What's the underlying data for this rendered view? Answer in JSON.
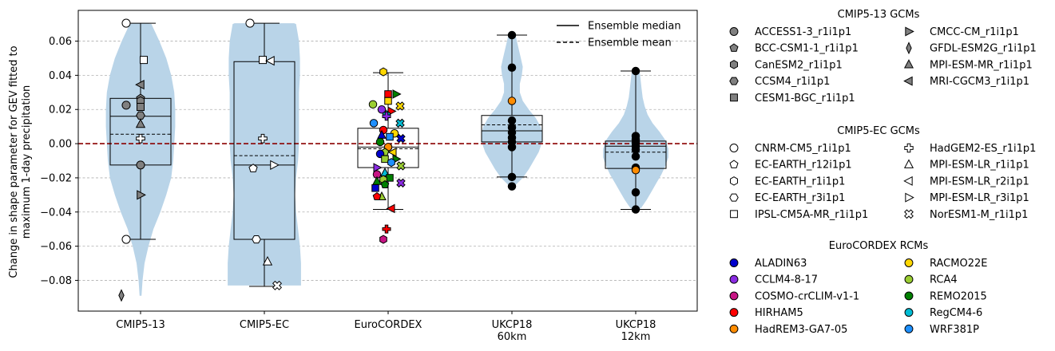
{
  "chart_data": {
    "type": "violin-box",
    "ylabel_lines": [
      "Change in shape parameter for GEV fitted to",
      "maximum 1-day precipitation"
    ],
    "ylim": [
      -0.098,
      0.078
    ],
    "yticks": [
      {
        "value": 0.06,
        "label": "0.06"
      },
      {
        "value": 0.04,
        "label": "0.04"
      },
      {
        "value": 0.02,
        "label": "0.02"
      },
      {
        "value": 0.0,
        "label": "0.00"
      },
      {
        "value": -0.02,
        "label": "−0.02"
      },
      {
        "value": -0.04,
        "label": "−0.04"
      },
      {
        "value": -0.06,
        "label": "−0.06"
      },
      {
        "value": -0.08,
        "label": "−0.08"
      }
    ],
    "grid": "horizontal dashed",
    "zero_line_color": "#8b0000",
    "violin_color": "#b9d4e8",
    "categories": [
      {
        "lines": [
          "CMIP5-13"
        ],
        "box": {
          "q1": -0.0125,
          "q3": 0.0265,
          "median": 0.016,
          "mean": 0.0055,
          "wlo": -0.056,
          "whi": 0.0705
        },
        "violin": [
          [
            -0.089,
            0.001
          ],
          [
            -0.08,
            0.002
          ],
          [
            -0.07,
            0.004
          ],
          [
            -0.06,
            0.008
          ],
          [
            -0.05,
            0.013
          ],
          [
            -0.04,
            0.02
          ],
          [
            -0.03,
            0.026
          ],
          [
            -0.02,
            0.031
          ],
          [
            -0.01,
            0.033
          ],
          [
            0.0,
            0.034
          ],
          [
            0.01,
            0.035
          ],
          [
            0.02,
            0.035
          ],
          [
            0.03,
            0.034
          ],
          [
            0.04,
            0.031
          ],
          [
            0.05,
            0.026
          ],
          [
            0.06,
            0.019
          ],
          [
            0.07,
            0.011
          ],
          [
            0.0705,
            0.006
          ]
        ],
        "points": [
          {
            "model": "ACCESS1-3_r1i1p1",
            "y": 0.0225
          },
          {
            "model": "BCC-CSM1-1_r1i1p1",
            "y": 0.0265
          },
          {
            "model": "CanESM2_r1i1p1",
            "y": 0.025
          },
          {
            "model": "CCSM4_r1i1p1",
            "y": 0.0165
          },
          {
            "model": "CESM1-BGC_r1i1p1",
            "y": 0.0215
          },
          {
            "model": "CMCC-CM_r1i1p1",
            "y": -0.03
          },
          {
            "model": "GFDL-ESM2G_r1i1p1",
            "y": -0.0888
          },
          {
            "model": "MPI-ESM-MR_r1i1p1",
            "y": 0.0115
          },
          {
            "model": "MRI-CGCM3_r1i1p1",
            "y": 0.0345
          },
          {
            "model": "CNRM-CM5_r1i1p1",
            "y": 0.0705
          },
          {
            "model": "HadGEM2-ES_r1i1p1",
            "y": 0.003
          },
          {
            "model": "IPSL-CM5A-MR_r1i1p1",
            "y": 0.049
          },
          {
            "model": "ACCESS1-3_r1i1p1",
            "y": -0.0125
          },
          {
            "model": "CNRM-CM5_r1i1p1",
            "y": -0.056
          }
        ]
      },
      {
        "lines": [
          "CMIP5-EC"
        ],
        "box": {
          "q1": -0.056,
          "q3": 0.048,
          "median": -0.0125,
          "mean": -0.007,
          "wlo": -0.0835,
          "whi": 0.0705
        },
        "violin": [
          [
            -0.083,
            0.037
          ],
          [
            -0.07,
            0.037
          ],
          [
            -0.06,
            0.036
          ],
          [
            -0.05,
            0.034
          ],
          [
            -0.04,
            0.032
          ],
          [
            -0.03,
            0.031
          ],
          [
            -0.02,
            0.032
          ],
          [
            -0.01,
            0.034
          ],
          [
            0.0,
            0.035
          ],
          [
            0.01,
            0.035
          ],
          [
            0.02,
            0.035
          ],
          [
            0.03,
            0.035
          ],
          [
            0.04,
            0.036
          ],
          [
            0.05,
            0.036
          ],
          [
            0.06,
            0.035
          ],
          [
            0.07,
            0.032
          ],
          [
            0.0705,
            0.03
          ]
        ],
        "points": [
          {
            "model": "CNRM-CM5_r1i1p1",
            "y": 0.0705
          },
          {
            "model": "IPSL-CM5A-MR_r1i1p1",
            "y": 0.049
          },
          {
            "model": "MPI-ESM-LR_r2i1p1",
            "y": 0.0485
          },
          {
            "model": "HadGEM2-ES_r1i1p1",
            "y": 0.003
          },
          {
            "model": "EC-EARTH_r12i1p1",
            "y": -0.0145
          },
          {
            "model": "MPI-ESM-LR_r3i1p1",
            "y": -0.0125
          },
          {
            "model": "EC-EARTH_r3i1p1",
            "y": -0.056
          },
          {
            "model": "MPI-ESM-LR_r1i1p1",
            "y": -0.069
          },
          {
            "model": "NorESM1-M_r1i1p1",
            "y": -0.083
          }
        ]
      },
      {
        "lines": [
          "EuroCORDEX"
        ],
        "box": {
          "q1": -0.014,
          "q3": 0.009,
          "median": -0.002,
          "mean": -0.003,
          "wlo": -0.0385,
          "whi": 0.0415
        },
        "violin": [],
        "points": [
          {
            "model": "RACMO22E",
            "marker": "hexagon",
            "y": 0.042
          },
          {
            "model": "REMO2015",
            "marker": "triangle-right",
            "y": 0.029
          },
          {
            "model": "HIRHAM5",
            "marker": "square",
            "y": 0.029
          },
          {
            "model": "RACMO22E",
            "marker": "square",
            "y": 0.025
          },
          {
            "model": "RACMO22E",
            "marker": "cross-x",
            "y": 0.022
          },
          {
            "model": "RCA4",
            "marker": "circle",
            "y": 0.023
          },
          {
            "model": "CCLM4-8-17",
            "marker": "circle",
            "y": 0.02
          },
          {
            "model": "HIRHAM5",
            "marker": "triangle-right",
            "y": 0.019
          },
          {
            "model": "RegCM4-6",
            "marker": "pentagon",
            "y": 0.017
          },
          {
            "model": "CCLM4-8-17",
            "marker": "plus",
            "y": 0.016
          },
          {
            "model": "WRF381P",
            "marker": "circle",
            "y": 0.012
          },
          {
            "model": "RegCM4-6",
            "marker": "cross-x",
            "y": 0.012
          },
          {
            "model": "HIRHAM5",
            "marker": "circle",
            "y": 0.008
          },
          {
            "model": "RACMO22E",
            "marker": "circle",
            "y": 0.006
          },
          {
            "model": "ALADIN63",
            "marker": "triangle-up",
            "y": 0.005
          },
          {
            "model": "WRF381P",
            "marker": "square",
            "y": 0.004
          },
          {
            "model": "ALADIN63",
            "marker": "cross-x",
            "y": 0.003
          },
          {
            "model": "REMO2015",
            "marker": "circle",
            "y": 0.001
          },
          {
            "model": "HadREM3-GA7-05",
            "marker": "circle",
            "y": -0.002
          },
          {
            "model": "RCA4",
            "marker": "pentagon",
            "y": -0.005
          },
          {
            "model": "RACMO22E",
            "marker": "triangle-left",
            "y": -0.005
          },
          {
            "model": "ALADIN63",
            "marker": "circle",
            "y": -0.006
          },
          {
            "model": "RCA4",
            "marker": "square",
            "y": -0.009
          },
          {
            "model": "REMO2015",
            "marker": "triangle-right",
            "y": -0.009
          },
          {
            "model": "WRF381P",
            "marker": "hexagon",
            "y": -0.011
          },
          {
            "model": "RCA4",
            "marker": "cross-x",
            "y": -0.013
          },
          {
            "model": "CCLM4-8-17",
            "marker": "triangle-right",
            "y": -0.014
          },
          {
            "model": "COSMO-crCLIM-v1-1",
            "marker": "circle",
            "y": -0.018
          },
          {
            "model": "RegCM4-6",
            "marker": "triangle-up",
            "y": -0.017
          },
          {
            "model": "REMO2015",
            "marker": "square",
            "y": -0.02
          },
          {
            "model": "RCA4",
            "marker": "hexagon",
            "y": -0.021
          },
          {
            "model": "REMO2015",
            "marker": "triangle-up",
            "y": -0.022
          },
          {
            "model": "CCLM4-8-17",
            "marker": "cross-x",
            "y": -0.023
          },
          {
            "model": "REMO2015",
            "marker": "pentagon",
            "y": -0.024
          },
          {
            "model": "ALADIN63",
            "marker": "square",
            "y": -0.026
          },
          {
            "model": "RCA4",
            "marker": "triangle-up",
            "y": -0.031
          },
          {
            "model": "HIRHAM5",
            "marker": "pentagon",
            "y": -0.031
          },
          {
            "model": "HIRHAM5",
            "marker": "triangle-left",
            "y": -0.038
          },
          {
            "model": "HIRHAM5",
            "marker": "plus",
            "y": -0.05
          },
          {
            "model": "COSMO-crCLIM-v1-1",
            "marker": "hexagon",
            "y": -0.056
          }
        ]
      },
      {
        "lines": [
          "UKCP18",
          "60km"
        ],
        "box": {
          "q1": 0.001,
          "q3": 0.0165,
          "median": 0.0075,
          "mean": 0.011,
          "wlo": -0.0195,
          "whi": 0.0635
        },
        "violin": [
          [
            -0.024,
            0.004
          ],
          [
            -0.02,
            0.011
          ],
          [
            -0.015,
            0.017
          ],
          [
            -0.01,
            0.022
          ],
          [
            -0.005,
            0.027
          ],
          [
            0.0,
            0.03
          ],
          [
            0.005,
            0.031
          ],
          [
            0.01,
            0.029
          ],
          [
            0.015,
            0.024
          ],
          [
            0.02,
            0.017
          ],
          [
            0.025,
            0.011
          ],
          [
            0.03,
            0.008
          ],
          [
            0.035,
            0.008
          ],
          [
            0.04,
            0.01
          ],
          [
            0.045,
            0.011
          ],
          [
            0.05,
            0.009
          ],
          [
            0.055,
            0.007
          ],
          [
            0.06,
            0.005
          ],
          [
            0.065,
            0.003
          ]
        ],
        "points": [
          {
            "color": "#000000",
            "y": 0.0635
          },
          {
            "color": "#000000",
            "y": 0.0445
          },
          {
            "color": "#ff8c00",
            "y": 0.025
          },
          {
            "color": "#000000",
            "y": 0.0135
          },
          {
            "color": "#000000",
            "y": 0.0095
          },
          {
            "color": "#000000",
            "y": 0.0065
          },
          {
            "color": "#000000",
            "y": 0.0035
          },
          {
            "color": "#000000",
            "y": 0.001
          },
          {
            "color": "#000000",
            "y": -0.002
          },
          {
            "color": "#000000",
            "y": -0.0195
          },
          {
            "color": "#000000",
            "y": -0.025
          }
        ]
      },
      {
        "lines": [
          "UKCP18",
          "12km"
        ],
        "box": {
          "q1": -0.0145,
          "q3": 0.0015,
          "median": -0.0015,
          "mean": -0.005,
          "wlo": -0.0385,
          "whi": 0.0425
        },
        "violin": [
          [
            -0.038,
            0.005
          ],
          [
            -0.033,
            0.011
          ],
          [
            -0.028,
            0.016
          ],
          [
            -0.023,
            0.021
          ],
          [
            -0.018,
            0.026
          ],
          [
            -0.013,
            0.03
          ],
          [
            -0.008,
            0.033
          ],
          [
            -0.003,
            0.033
          ],
          [
            0.002,
            0.03
          ],
          [
            0.007,
            0.024
          ],
          [
            0.012,
            0.017
          ],
          [
            0.017,
            0.012
          ],
          [
            0.022,
            0.009
          ],
          [
            0.027,
            0.007
          ],
          [
            0.032,
            0.006
          ],
          [
            0.037,
            0.005
          ],
          [
            0.042,
            0.004
          ]
        ],
        "points": [
          {
            "color": "#000000",
            "y": 0.0425
          },
          {
            "color": "#000000",
            "y": 0.0045
          },
          {
            "color": "#000000",
            "y": 0.0025
          },
          {
            "color": "#000000",
            "y": 0.0005
          },
          {
            "color": "#000000",
            "y": -0.0015
          },
          {
            "color": "#000000",
            "y": -0.0035
          },
          {
            "color": "#000000",
            "y": -0.0075
          },
          {
            "color": "#000000",
            "y": -0.014
          },
          {
            "color": "#ff8c00",
            "y": -0.0155
          },
          {
            "color": "#000000",
            "y": -0.0285
          },
          {
            "color": "#000000",
            "y": -0.0385
          }
        ]
      }
    ]
  },
  "legend_lines": [
    {
      "label": "Ensemble median",
      "style": "solid"
    },
    {
      "label": "Ensemble mean",
      "style": "dashed"
    }
  ],
  "legend_groups": [
    {
      "title": "CMIP5-13 GCMs",
      "items": [
        {
          "label": "ACCESS1-3_r1i1p1",
          "marker": "circle",
          "fill": "#808080"
        },
        {
          "label": "CMCC-CM_r1i1p1",
          "marker": "triangle-right",
          "fill": "#808080"
        },
        {
          "label": "BCC-CSM1-1_r1i1p1",
          "marker": "pentagon",
          "fill": "#808080"
        },
        {
          "label": "GFDL-ESM2G_r1i1p1",
          "marker": "diamond",
          "fill": "#808080"
        },
        {
          "label": "CanESM2_r1i1p1",
          "marker": "hexagon",
          "fill": "#808080"
        },
        {
          "label": "MPI-ESM-MR_r1i1p1",
          "marker": "triangle-up",
          "fill": "#808080"
        },
        {
          "label": "CCSM4_r1i1p1",
          "marker": "hexagon2",
          "fill": "#808080"
        },
        {
          "label": "MRI-CGCM3_r1i1p1",
          "marker": "triangle-left",
          "fill": "#808080"
        },
        {
          "label": "CESM1-BGC_r1i1p1",
          "marker": "square",
          "fill": "#808080"
        }
      ]
    },
    {
      "title": "CMIP5-EC GCMs",
      "items": [
        {
          "label": "CNRM-CM5_r1i1p1",
          "marker": "circle",
          "fill": "#ffffff"
        },
        {
          "label": "HadGEM2-ES_r1i1p1",
          "marker": "plus",
          "fill": "#ffffff"
        },
        {
          "label": "EC-EARTH_r12i1p1",
          "marker": "pentagon",
          "fill": "#ffffff"
        },
        {
          "label": "MPI-ESM-LR_r1i1p1",
          "marker": "triangle-up",
          "fill": "#ffffff"
        },
        {
          "label": "EC-EARTH_r1i1p1",
          "marker": "hexagon",
          "fill": "#ffffff"
        },
        {
          "label": "MPI-ESM-LR_r2i1p1",
          "marker": "triangle-left",
          "fill": "#ffffff"
        },
        {
          "label": "EC-EARTH_r3i1p1",
          "marker": "hexagon2",
          "fill": "#ffffff"
        },
        {
          "label": "MPI-ESM-LR_r3i1p1",
          "marker": "triangle-right",
          "fill": "#ffffff"
        },
        {
          "label": "IPSL-CM5A-MR_r1i1p1",
          "marker": "square",
          "fill": "#ffffff"
        },
        {
          "label": "NorESM1-M_r1i1p1",
          "marker": "cross-x",
          "fill": "#ffffff"
        }
      ]
    },
    {
      "title": "EuroCORDEX RCMs",
      "items": [
        {
          "label": "ALADIN63",
          "marker": "circle",
          "fill": "#0000cd"
        },
        {
          "label": "RACMO22E",
          "marker": "circle",
          "fill": "#ffd700"
        },
        {
          "label": "CCLM4-8-17",
          "marker": "circle",
          "fill": "#8a2be2"
        },
        {
          "label": "RCA4",
          "marker": "circle",
          "fill": "#9acd32"
        },
        {
          "label": "COSMO-crCLIM-v1-1",
          "marker": "circle",
          "fill": "#c71585"
        },
        {
          "label": "REMO2015",
          "marker": "circle",
          "fill": "#008000"
        },
        {
          "label": "HIRHAM5",
          "marker": "circle",
          "fill": "#ff0000"
        },
        {
          "label": "RegCM4-6",
          "marker": "circle",
          "fill": "#00bcd4"
        },
        {
          "label": "HadREM3-GA7-05",
          "marker": "circle",
          "fill": "#ff8c00"
        },
        {
          "label": "WRF381P",
          "marker": "circle",
          "fill": "#1e90ff"
        }
      ]
    }
  ]
}
